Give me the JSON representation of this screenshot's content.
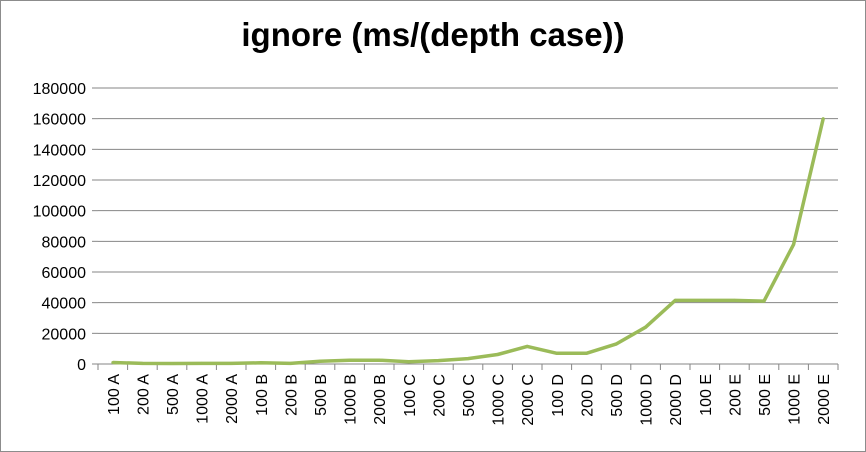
{
  "chart_data": {
    "type": "line",
    "title": "ignore (ms/(depth case))",
    "xlabel": "",
    "ylabel": "",
    "ylim": [
      0,
      180000
    ],
    "ytick_step": 20000,
    "grid": true,
    "legend": "none",
    "categories": [
      "100 A",
      "200 A",
      "500 A",
      "1000 A",
      "2000 A",
      "100 B",
      "200 B",
      "500 B",
      "1000 B",
      "2000 B",
      "100 C",
      "200 C",
      "500 C",
      "1000 C",
      "2000 C",
      "100 D",
      "200 D",
      "500 D",
      "1000 D",
      "2000 D",
      "100 E",
      "200 E",
      "500 E",
      "1000 E",
      "2000 E"
    ],
    "series": [
      {
        "values": [
          1000,
          400,
          300,
          400,
          400,
          800,
          400,
          1800,
          2500,
          2500,
          1500,
          2200,
          3500,
          6200,
          11500,
          7000,
          7000,
          13000,
          24000,
          41500,
          41500,
          41500,
          41000,
          78000,
          160000
        ],
        "color": "#9bbb59"
      }
    ],
    "colors": {
      "grid": "#868686",
      "axis": "#868686",
      "border": "#8c8c8c"
    }
  }
}
